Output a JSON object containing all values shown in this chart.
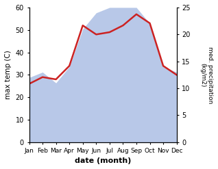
{
  "months": [
    "Jan",
    "Feb",
    "Mar",
    "Apr",
    "May",
    "Jun",
    "Jul",
    "Aug",
    "Sep",
    "Oct",
    "Nov",
    "Dec"
  ],
  "month_indices": [
    0,
    1,
    2,
    3,
    4,
    5,
    6,
    7,
    8,
    9,
    10,
    11
  ],
  "temp": [
    26,
    29,
    28,
    34,
    52,
    48,
    49,
    52,
    57,
    53,
    34,
    30
  ],
  "precip": [
    12,
    13,
    11,
    14,
    21,
    24,
    25,
    25,
    25,
    22,
    14,
    13
  ],
  "temp_color": "#cc2222",
  "precip_fill_color": "#b8c8e8",
  "precip_line_color": "#8899bb",
  "left_ylabel": "max temp (C)",
  "right_ylabel": "med. precipitation\n(kg/m2)",
  "xlabel": "date (month)",
  "ylim_left": [
    0,
    60
  ],
  "ylim_right": [
    0,
    25
  ],
  "yticks_left": [
    0,
    10,
    20,
    30,
    40,
    50,
    60
  ],
  "yticks_right": [
    0,
    5,
    10,
    15,
    20,
    25
  ],
  "scale_factor": 2.4,
  "figsize": [
    3.18,
    2.47
  ],
  "dpi": 100
}
